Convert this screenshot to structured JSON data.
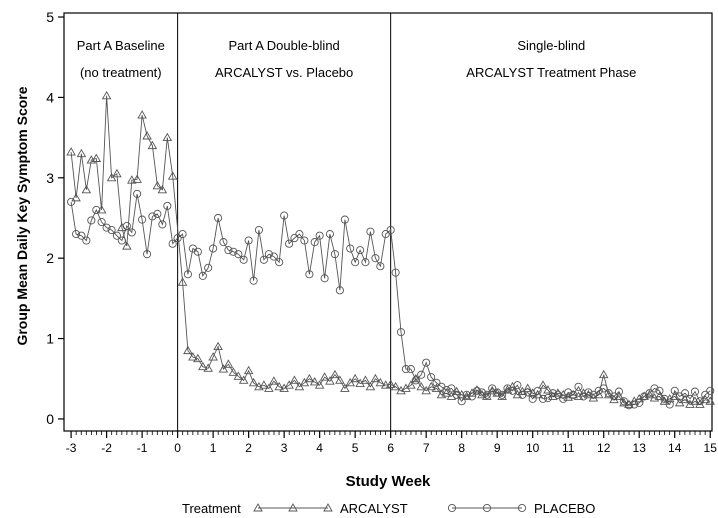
{
  "chart_data": {
    "type": "line",
    "title": "",
    "xlabel": "Study Week",
    "ylabel": "Group Mean Daily Key Symptom Score",
    "xlim": [
      -3.2,
      15.05
    ],
    "ylim": [
      -0.15,
      5.05
    ],
    "x_ticks": [
      -3,
      -2,
      -1,
      0,
      1,
      2,
      3,
      4,
      5,
      6,
      7,
      8,
      9,
      10,
      11,
      12,
      13,
      14,
      15
    ],
    "x_tick_labels": [
      "-3",
      "-2",
      "-1",
      "0",
      "1",
      "2",
      "3",
      "4",
      "5",
      "6",
      "7",
      "8",
      "9",
      "10",
      "11",
      "12",
      "13",
      "14",
      "15"
    ],
    "y_ticks": [
      0,
      1,
      2,
      3,
      4,
      5
    ],
    "y_tick_labels": [
      "0",
      "1",
      "2",
      "3",
      "4",
      "5"
    ],
    "grid": false,
    "phase_dividers": [
      0,
      6
    ],
    "phase_labels": [
      {
        "line1": "Part A Baseline",
        "line2": "(no treatment)"
      },
      {
        "line1": "Part A Double-blind",
        "line2": "ARCALYST vs. Placebo"
      },
      {
        "line1": "Single-blind",
        "line2": "ARCALYST Treatment Phase"
      }
    ],
    "legend": {
      "title": "Treatment",
      "position": "bottom"
    },
    "series": [
      {
        "name": "ARCALYST",
        "marker": "triangle",
        "color": "#555555",
        "points": [
          [
            -3.0,
            3.32
          ],
          [
            -2.86,
            2.75
          ],
          [
            -2.71,
            3.3
          ],
          [
            -2.57,
            2.85
          ],
          [
            -2.43,
            3.22
          ],
          [
            -2.29,
            3.24
          ],
          [
            -2.14,
            2.6
          ],
          [
            -2.0,
            4.02
          ],
          [
            -1.86,
            3.0
          ],
          [
            -1.71,
            3.05
          ],
          [
            -1.57,
            2.38
          ],
          [
            -1.43,
            2.15
          ],
          [
            -1.29,
            2.97
          ],
          [
            -1.14,
            2.98
          ],
          [
            -1.0,
            3.78
          ],
          [
            -0.86,
            3.52
          ],
          [
            -0.71,
            3.4
          ],
          [
            -0.57,
            2.9
          ],
          [
            -0.43,
            2.85
          ],
          [
            -0.29,
            3.5
          ],
          [
            -0.14,
            3.02
          ],
          [
            0.14,
            1.7
          ],
          [
            0.29,
            0.85
          ],
          [
            0.43,
            0.77
          ],
          [
            0.57,
            0.75
          ],
          [
            0.71,
            0.65
          ],
          [
            0.86,
            0.63
          ],
          [
            1.0,
            0.77
          ],
          [
            1.14,
            0.9
          ],
          [
            1.29,
            0.62
          ],
          [
            1.43,
            0.68
          ],
          [
            1.57,
            0.58
          ],
          [
            1.71,
            0.53
          ],
          [
            1.86,
            0.48
          ],
          [
            2.0,
            0.6
          ],
          [
            2.14,
            0.45
          ],
          [
            2.29,
            0.4
          ],
          [
            2.43,
            0.42
          ],
          [
            2.57,
            0.38
          ],
          [
            2.71,
            0.47
          ],
          [
            2.86,
            0.4
          ],
          [
            3.0,
            0.38
          ],
          [
            3.14,
            0.42
          ],
          [
            3.29,
            0.48
          ],
          [
            3.43,
            0.4
          ],
          [
            3.57,
            0.45
          ],
          [
            3.71,
            0.5
          ],
          [
            3.86,
            0.46
          ],
          [
            4.0,
            0.42
          ],
          [
            4.14,
            0.52
          ],
          [
            4.29,
            0.47
          ],
          [
            4.43,
            0.55
          ],
          [
            4.57,
            0.48
          ],
          [
            4.71,
            0.38
          ],
          [
            4.86,
            0.45
          ],
          [
            5.0,
            0.5
          ],
          [
            5.14,
            0.44
          ],
          [
            5.29,
            0.48
          ],
          [
            5.43,
            0.4
          ],
          [
            5.57,
            0.5
          ],
          [
            5.71,
            0.45
          ],
          [
            5.86,
            0.42
          ],
          [
            6.0,
            0.43
          ],
          [
            6.14,
            0.4
          ],
          [
            6.29,
            0.35
          ],
          [
            6.43,
            0.38
          ],
          [
            6.57,
            0.42
          ],
          [
            6.71,
            0.5
          ],
          [
            6.86,
            0.4
          ],
          [
            7.0,
            0.35
          ],
          [
            7.14,
            0.4
          ],
          [
            7.29,
            0.38
          ],
          [
            7.43,
            0.3
          ],
          [
            7.57,
            0.32
          ],
          [
            7.71,
            0.28
          ],
          [
            7.86,
            0.34
          ],
          [
            8.0,
            0.3
          ],
          [
            8.14,
            0.28
          ],
          [
            8.29,
            0.32
          ],
          [
            8.43,
            0.36
          ],
          [
            8.57,
            0.3
          ],
          [
            8.71,
            0.28
          ],
          [
            8.86,
            0.35
          ],
          [
            9.0,
            0.32
          ],
          [
            9.14,
            0.28
          ],
          [
            9.29,
            0.36
          ],
          [
            9.43,
            0.4
          ],
          [
            9.57,
            0.3
          ],
          [
            9.71,
            0.34
          ],
          [
            9.86,
            0.38
          ],
          [
            10.0,
            0.32
          ],
          [
            10.14,
            0.3
          ],
          [
            10.29,
            0.42
          ],
          [
            10.43,
            0.36
          ],
          [
            10.57,
            0.28
          ],
          [
            10.71,
            0.32
          ],
          [
            10.86,
            0.3
          ],
          [
            11.0,
            0.27
          ],
          [
            11.14,
            0.3
          ],
          [
            11.29,
            0.28
          ],
          [
            11.43,
            0.32
          ],
          [
            11.57,
            0.3
          ],
          [
            11.71,
            0.26
          ],
          [
            11.86,
            0.3
          ],
          [
            12.0,
            0.55
          ],
          [
            12.14,
            0.3
          ],
          [
            12.29,
            0.24
          ],
          [
            12.43,
            0.28
          ],
          [
            12.57,
            0.2
          ],
          [
            12.71,
            0.18
          ],
          [
            12.86,
            0.22
          ],
          [
            13.0,
            0.25
          ],
          [
            13.14,
            0.28
          ],
          [
            13.29,
            0.3
          ],
          [
            13.43,
            0.26
          ],
          [
            13.57,
            0.28
          ],
          [
            13.71,
            0.22
          ],
          [
            13.86,
            0.25
          ],
          [
            14.0,
            0.28
          ],
          [
            14.14,
            0.2
          ],
          [
            14.29,
            0.24
          ],
          [
            14.43,
            0.18
          ],
          [
            14.57,
            0.22
          ],
          [
            14.71,
            0.18
          ],
          [
            14.86,
            0.24
          ],
          [
            15.0,
            0.22
          ]
        ]
      },
      {
        "name": "PLACEBO",
        "marker": "circle",
        "color": "#555555",
        "points": [
          [
            -3.0,
            2.7
          ],
          [
            -2.86,
            2.3
          ],
          [
            -2.71,
            2.28
          ],
          [
            -2.57,
            2.22
          ],
          [
            -2.43,
            2.47
          ],
          [
            -2.29,
            2.6
          ],
          [
            -2.14,
            2.45
          ],
          [
            -2.0,
            2.38
          ],
          [
            -1.86,
            2.35
          ],
          [
            -1.71,
            2.28
          ],
          [
            -1.57,
            2.22
          ],
          [
            -1.43,
            2.4
          ],
          [
            -1.29,
            2.32
          ],
          [
            -1.14,
            2.8
          ],
          [
            -1.0,
            2.48
          ],
          [
            -0.86,
            2.05
          ],
          [
            -0.71,
            2.52
          ],
          [
            -0.57,
            2.55
          ],
          [
            -0.43,
            2.42
          ],
          [
            -0.29,
            2.65
          ],
          [
            -0.14,
            2.18
          ],
          [
            0.0,
            2.25
          ],
          [
            0.14,
            2.3
          ],
          [
            0.29,
            1.8
          ],
          [
            0.43,
            2.12
          ],
          [
            0.57,
            2.08
          ],
          [
            0.71,
            1.78
          ],
          [
            0.86,
            1.88
          ],
          [
            1.0,
            2.12
          ],
          [
            1.14,
            2.5
          ],
          [
            1.29,
            2.2
          ],
          [
            1.43,
            2.1
          ],
          [
            1.57,
            2.08
          ],
          [
            1.71,
            2.05
          ],
          [
            1.86,
            1.98
          ],
          [
            2.0,
            2.22
          ],
          [
            2.14,
            1.72
          ],
          [
            2.29,
            2.35
          ],
          [
            2.43,
            1.98
          ],
          [
            2.57,
            2.05
          ],
          [
            2.71,
            2.02
          ],
          [
            2.86,
            1.95
          ],
          [
            3.0,
            2.53
          ],
          [
            3.14,
            2.18
          ],
          [
            3.29,
            2.25
          ],
          [
            3.43,
            2.3
          ],
          [
            3.57,
            2.22
          ],
          [
            3.71,
            1.8
          ],
          [
            3.86,
            2.2
          ],
          [
            4.0,
            2.28
          ],
          [
            4.14,
            1.75
          ],
          [
            4.29,
            2.3
          ],
          [
            4.43,
            2.05
          ],
          [
            4.57,
            1.6
          ],
          [
            4.71,
            2.48
          ],
          [
            4.86,
            2.12
          ],
          [
            5.0,
            1.95
          ],
          [
            5.14,
            2.1
          ],
          [
            5.29,
            1.95
          ],
          [
            5.43,
            2.33
          ],
          [
            5.57,
            2.0
          ],
          [
            5.71,
            1.9
          ],
          [
            5.86,
            2.3
          ],
          [
            6.0,
            2.35
          ],
          [
            6.14,
            1.82
          ],
          [
            6.29,
            1.08
          ],
          [
            6.43,
            0.62
          ],
          [
            6.57,
            0.62
          ],
          [
            6.71,
            0.48
          ],
          [
            6.86,
            0.55
          ],
          [
            7.0,
            0.7
          ],
          [
            7.14,
            0.52
          ],
          [
            7.29,
            0.45
          ],
          [
            7.43,
            0.4
          ],
          [
            7.57,
            0.36
          ],
          [
            7.71,
            0.38
          ],
          [
            7.86,
            0.3
          ],
          [
            8.0,
            0.22
          ],
          [
            8.14,
            0.3
          ],
          [
            8.29,
            0.28
          ],
          [
            8.43,
            0.35
          ],
          [
            8.57,
            0.33
          ],
          [
            8.71,
            0.3
          ],
          [
            8.86,
            0.38
          ],
          [
            9.0,
            0.33
          ],
          [
            9.14,
            0.3
          ],
          [
            9.29,
            0.38
          ],
          [
            9.43,
            0.35
          ],
          [
            9.57,
            0.42
          ],
          [
            9.71,
            0.3
          ],
          [
            9.86,
            0.33
          ],
          [
            10.0,
            0.25
          ],
          [
            10.14,
            0.35
          ],
          [
            10.29,
            0.25
          ],
          [
            10.43,
            0.26
          ],
          [
            10.57,
            0.32
          ],
          [
            10.71,
            0.3
          ],
          [
            10.86,
            0.25
          ],
          [
            11.0,
            0.33
          ],
          [
            11.14,
            0.3
          ],
          [
            11.29,
            0.4
          ],
          [
            11.43,
            0.28
          ],
          [
            11.57,
            0.33
          ],
          [
            11.71,
            0.3
          ],
          [
            11.86,
            0.35
          ],
          [
            12.0,
            0.38
          ],
          [
            12.14,
            0.32
          ],
          [
            12.29,
            0.28
          ],
          [
            12.43,
            0.34
          ],
          [
            12.57,
            0.22
          ],
          [
            12.71,
            0.17
          ],
          [
            12.86,
            0.18
          ],
          [
            13.0,
            0.2
          ],
          [
            13.14,
            0.28
          ],
          [
            13.29,
            0.32
          ],
          [
            13.43,
            0.38
          ],
          [
            13.57,
            0.35
          ],
          [
            13.71,
            0.25
          ],
          [
            13.86,
            0.18
          ],
          [
            14.0,
            0.35
          ],
          [
            14.14,
            0.28
          ],
          [
            14.29,
            0.32
          ],
          [
            14.43,
            0.25
          ],
          [
            14.57,
            0.34
          ],
          [
            14.71,
            0.22
          ],
          [
            14.86,
            0.3
          ],
          [
            15.0,
            0.35
          ]
        ]
      }
    ]
  }
}
